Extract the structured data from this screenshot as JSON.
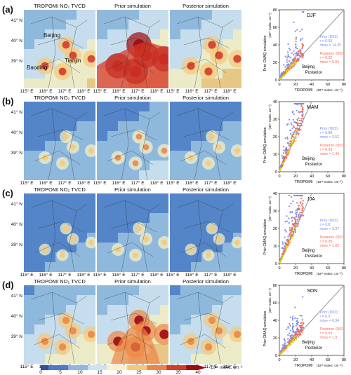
{
  "panels": [
    {
      "letter": "(a)",
      "season": "DJF",
      "prior_r": "r = 0.93",
      "prior_rmse": "rmse = 14.25",
      "post_r": "r = 0.92",
      "post_rmse": "rmse = 5.94",
      "scatter_ymax": 80,
      "ymax_label": "80",
      "ymid_label": "40",
      "yq_label": "20",
      "y3q_label": "60",
      "intensity": [
        1.0,
        2.0,
        1.1
      ]
    },
    {
      "letter": "(b)",
      "season": "MAM",
      "prior_r": "r = 0.88",
      "prior_rmse": "rmse = 3.52",
      "post_r": "r = 0.93",
      "post_rmse": "rmse = 1.44",
      "scatter_ymax": 40,
      "ymax_label": "40",
      "ymid_label": "20",
      "yq_label": "10",
      "y3q_label": "30",
      "intensity": [
        0.5,
        0.6,
        0.5
      ]
    },
    {
      "letter": "(c)",
      "season": "JJA",
      "prior_r": "r = 0.8",
      "prior_rmse": "rmse = 3.37",
      "post_r": "r = 0.95",
      "post_rmse": "rmse = 1.02",
      "scatter_ymax": 40,
      "ymax_label": "40",
      "ymid_label": "20",
      "yq_label": "10",
      "y3q_label": "30",
      "intensity": [
        0.4,
        0.5,
        0.4
      ]
    },
    {
      "letter": "(d)",
      "season": "SON",
      "prior_r": "r = 0.9",
      "prior_rmse": "rmse = 6.34",
      "post_r": "r = 0.93",
      "post_rmse": "rmse = 1.9",
      "scatter_ymax": 80,
      "ymax_label": "80",
      "ymid_label": "40",
      "yq_label": "20",
      "y3q_label": "60",
      "intensity": [
        0.9,
        1.5,
        0.9
      ]
    }
  ],
  "map_titles": [
    "TROPOMI NO₂ TVCD",
    "Prior simulation",
    "Posterior simulation"
  ],
  "lat_labels": [
    "41° N",
    "40° N",
    "39° N"
  ],
  "lon_labels": [
    "115° E",
    "116° E",
    "117° E",
    "118° E"
  ],
  "city_labels": {
    "beijing": "Beijing",
    "tianjin": "Tianjin",
    "baoding": "Baoding"
  },
  "scatter": {
    "xlabel": "TROPOMI",
    "xunit": "(10¹⁵ molec. cm⁻²)",
    "ylabel": "Prior CMAQ simulation",
    "yunit": "(10¹⁵ molec. cm⁻²)",
    "x_ticks": [
      "0",
      "20",
      "40",
      "60",
      "80"
    ],
    "prior_label": "Prior (D03):",
    "post_label": "Posterior (D03):",
    "beijing_label": "Beijing",
    "posterior_label": "Posterior"
  },
  "colorbar": {
    "ticks": [
      "0",
      "5",
      "10",
      "15",
      "20",
      "25",
      "30",
      "35",
      "40"
    ],
    "unit": "10¹⁵ molec. cm⁻²"
  },
  "colors": {
    "prior": "#7b8de8",
    "posterior": "#f26b5a",
    "beijing": "#d8d820",
    "one_to_one": "#999999"
  },
  "chart_data": [
    {
      "type": "scatter",
      "title": "DJF",
      "xlabel": "TROPOMI",
      "ylabel": "Prior CMAQ simulation",
      "xlim": [
        0,
        80
      ],
      "ylim": [
        0,
        80
      ],
      "series": [
        {
          "name": "Prior (D03)",
          "r": 0.93,
          "rmse": 14.25
        },
        {
          "name": "Posterior (D03)",
          "r": 0.92,
          "rmse": 5.94
        }
      ]
    },
    {
      "type": "scatter",
      "title": "MAM",
      "xlabel": "TROPOMI",
      "ylabel": "Prior CMAQ simulation",
      "xlim": [
        0,
        80
      ],
      "ylim": [
        0,
        40
      ],
      "series": [
        {
          "name": "Prior (D03)",
          "r": 0.88,
          "rmse": 3.52
        },
        {
          "name": "Posterior (D03)",
          "r": 0.93,
          "rmse": 1.44
        }
      ]
    },
    {
      "type": "scatter",
      "title": "JJA",
      "xlabel": "TROPOMI",
      "ylabel": "Prior CMAQ simulation",
      "xlim": [
        0,
        80
      ],
      "ylim": [
        0,
        40
      ],
      "series": [
        {
          "name": "Prior (D03)",
          "r": 0.8,
          "rmse": 3.37
        },
        {
          "name": "Posterior (D03)",
          "r": 0.95,
          "rmse": 1.02
        }
      ]
    },
    {
      "type": "scatter",
      "title": "SON",
      "xlabel": "TROPOMI",
      "ylabel": "Prior CMAQ simulation",
      "xlim": [
        0,
        80
      ],
      "ylim": [
        0,
        80
      ],
      "series": [
        {
          "name": "Prior (D03)",
          "r": 0.9,
          "rmse": 6.34
        },
        {
          "name": "Posterior (D03)",
          "r": 0.93,
          "rmse": 1.9
        }
      ]
    }
  ]
}
